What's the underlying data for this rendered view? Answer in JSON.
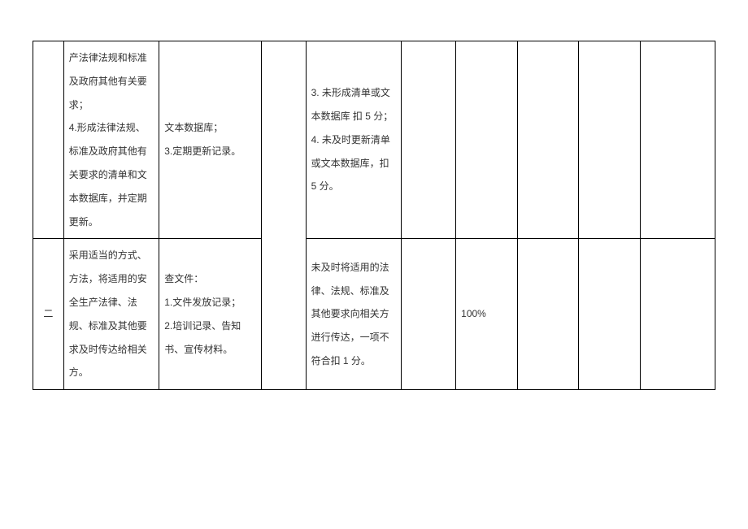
{
  "table": {
    "border_color": "#000000",
    "background_color": "#ffffff",
    "text_color": "#333333",
    "font_size": 12,
    "line_height": 2.4,
    "columns_pct": [
      4.5,
      14,
      15,
      6.5,
      14,
      8,
      9,
      9,
      9,
      11
    ],
    "rows": [
      {
        "cells": [
          {
            "text": "",
            "align": "center"
          },
          {
            "text": "产法律法规和标准及政府其他有关要求；\n4.形成法律法规、标准及政府其他有关要求的清单和文本数据库，并定期更新。"
          },
          {
            "text": "文本数据库；\n3.定期更新记录。"
          },
          {
            "text": "",
            "rowspan": 2,
            "align": "center"
          },
          {
            "text": "3. 未形成清单或文本数据库 扣 5 分；\n4. 未及时更新清单或文本数据库，扣 5 分。"
          },
          {
            "text": "",
            "align": "center"
          },
          {
            "text": "",
            "align": "center"
          },
          {
            "text": "",
            "align": "center"
          },
          {
            "text": "",
            "align": "center"
          },
          {
            "text": "",
            "align": "center"
          }
        ]
      },
      {
        "cells": [
          {
            "text": "二",
            "align": "center"
          },
          {
            "text": "采用适当的方式、方法，将适用的安全生产法律、法规、标准及其他要求及时传达给相关方。"
          },
          {
            "text": "查文件：\n1.文件发放记录；\n2.培训记录、告知书、宣传材料。"
          },
          {
            "text": "未及时将适用的法律、法规、标准及其他要求向相关方进行传达，一项不符合扣 1 分。"
          },
          {
            "text": "",
            "align": "center"
          },
          {
            "text": "100%"
          },
          {
            "text": "",
            "align": "center"
          },
          {
            "text": "",
            "align": "center"
          },
          {
            "text": "",
            "align": "center"
          }
        ]
      }
    ]
  }
}
